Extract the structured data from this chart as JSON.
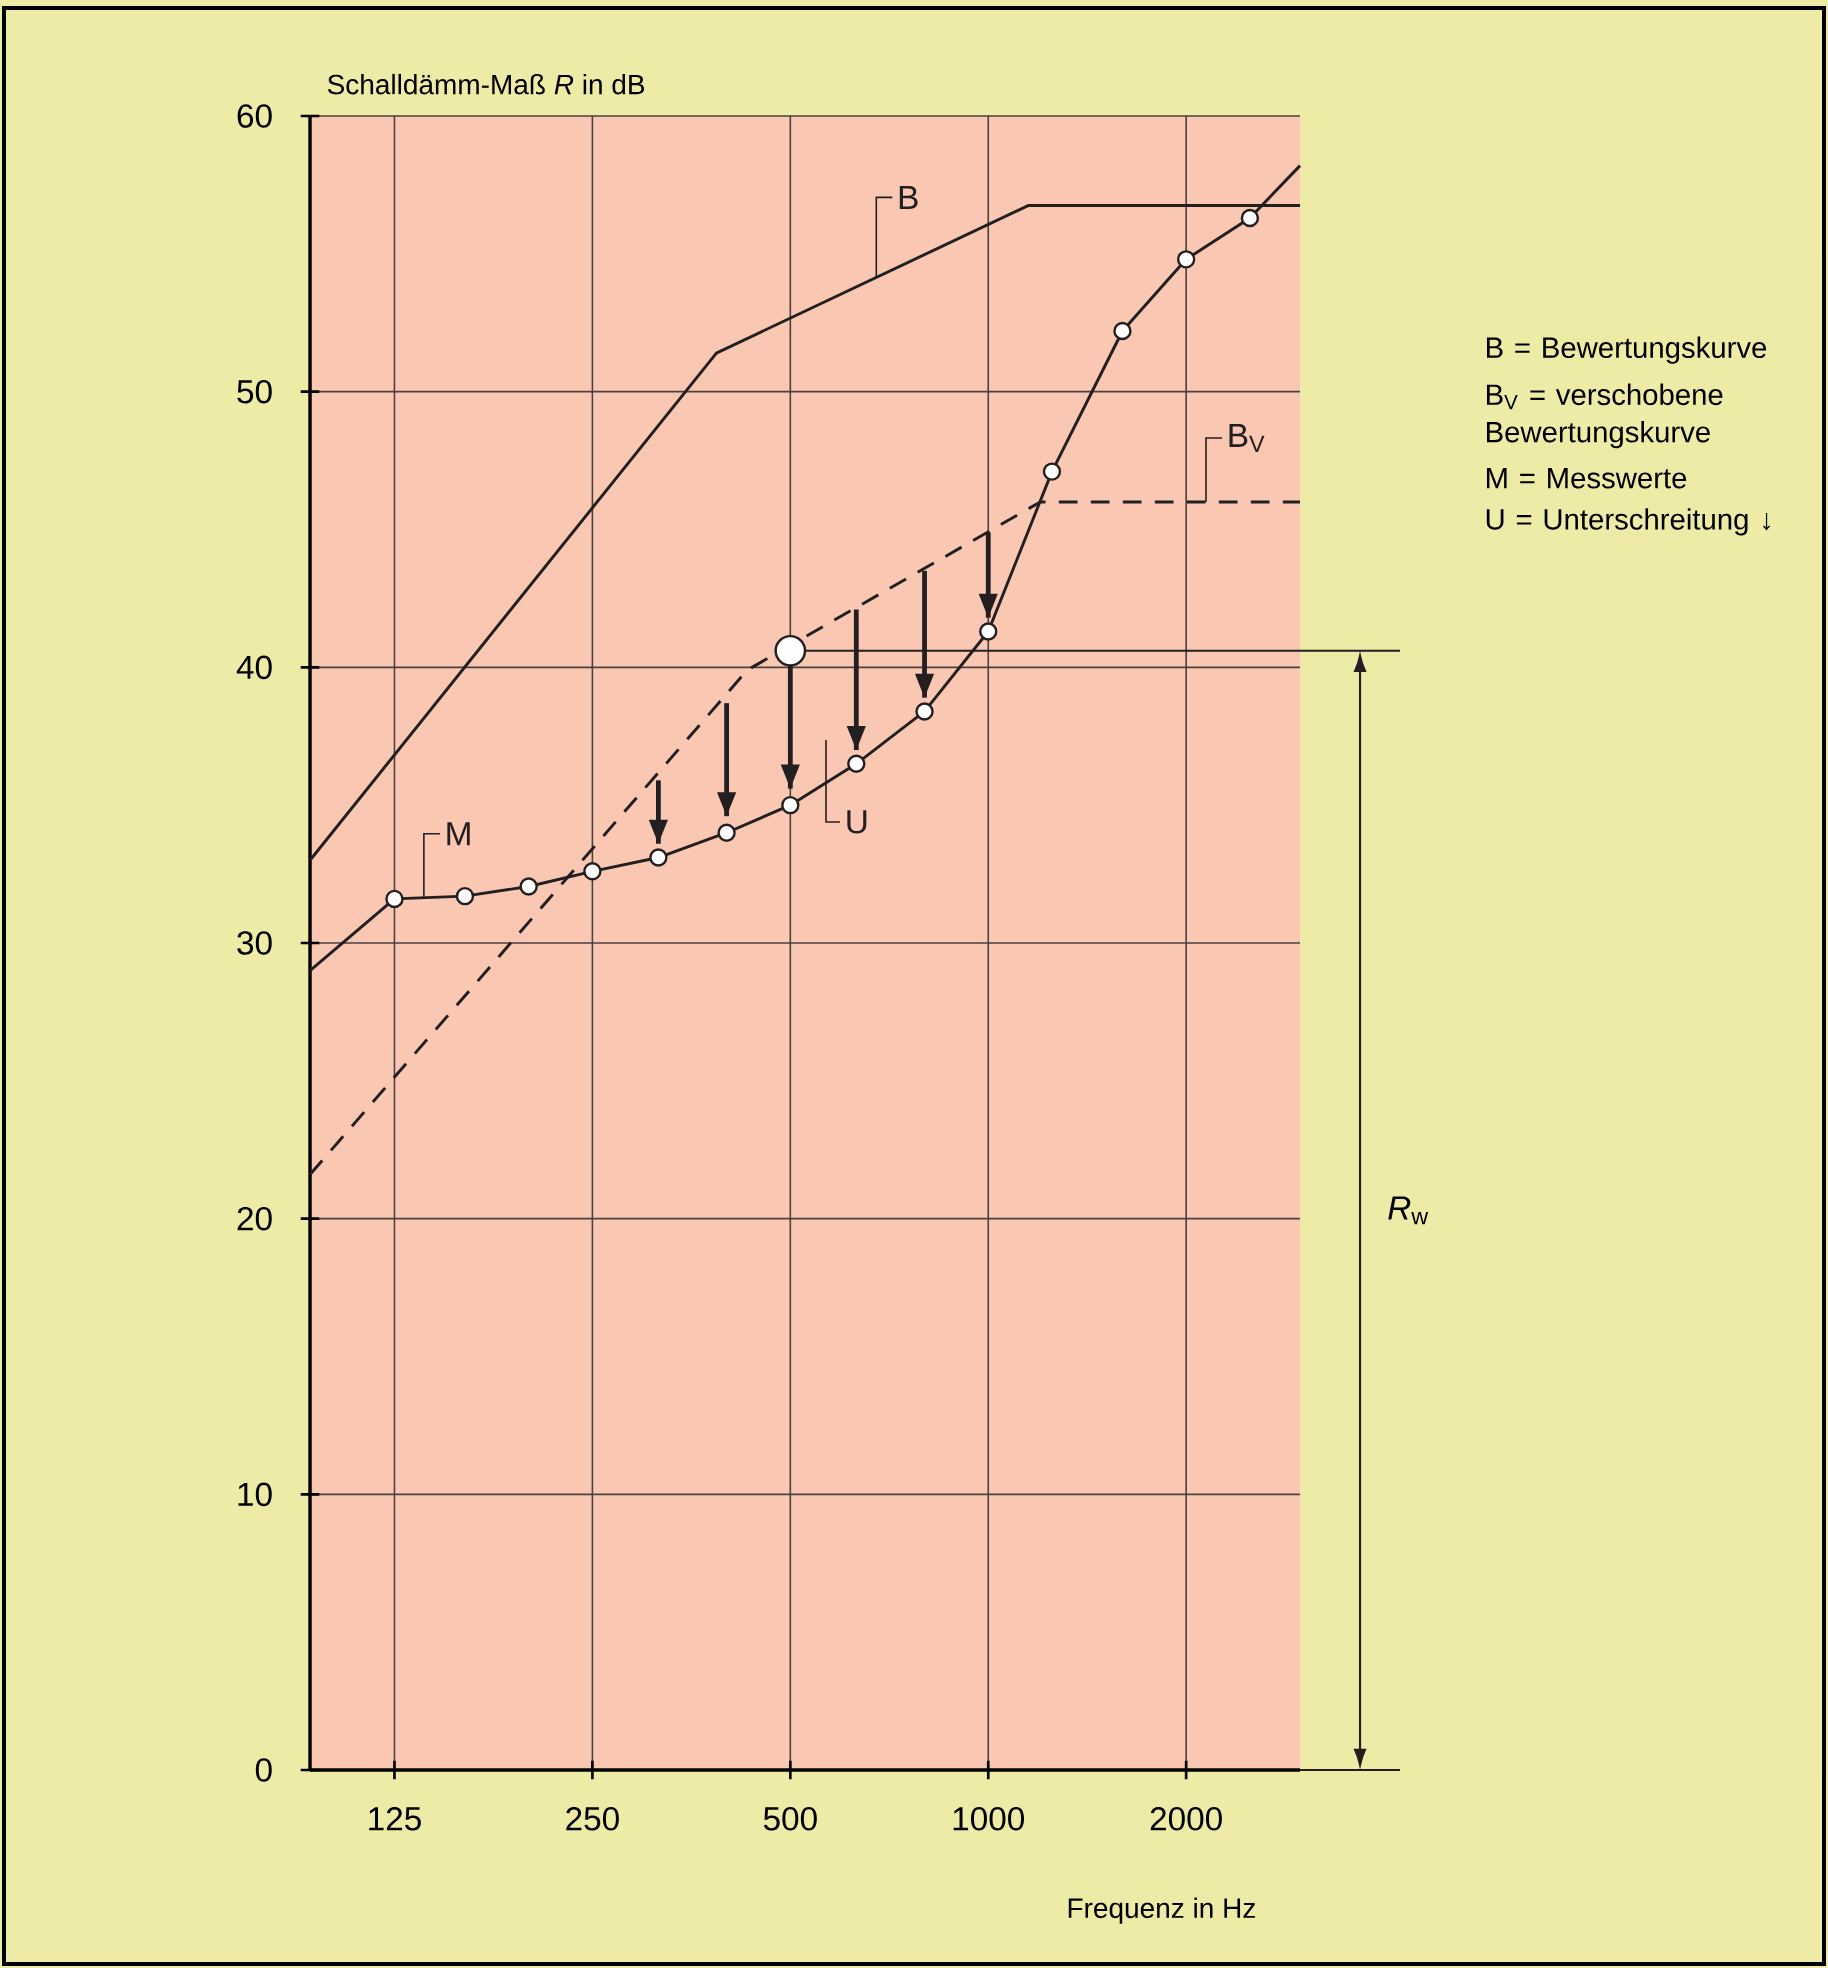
{
  "chart_data": {
    "type": "line",
    "ylabel": "Schalldämm-Maß *R* in dB",
    "xlabel": "Frequenz in Hz",
    "log": "x",
    "xlim": [
      93,
      2980
    ],
    "xticks": [
      125,
      250,
      500,
      1000,
      2000
    ],
    "ylim": [
      0,
      60
    ],
    "yticks": [
      0,
      10,
      20,
      30,
      40,
      50,
      60
    ],
    "grid": true,
    "series": [
      {
        "name": "B",
        "color": "#231f20",
        "line_style": "solid",
        "marker": "none",
        "x": [
          93,
          386,
          1150,
          2980
        ],
        "values": [
          33.0,
          51.4,
          56.75,
          56.75
        ]
      },
      {
        "name": "B$_{V}$",
        "color": "#231f20",
        "line_style": "dashed",
        "marker": "none",
        "x": [
          93,
          430,
          1200,
          2980
        ],
        "values": [
          21.6,
          39.9,
          46.0,
          46.0
        ]
      },
      {
        "name": "M",
        "color": "#231f20",
        "line_style": "solid",
        "marker": "circle",
        "x": [
          125,
          160,
          200,
          250,
          315,
          400,
          500,
          630,
          800,
          1000,
          1250,
          1600,
          2000,
          2500
        ],
        "values": [
          31.6,
          31.7,
          32.05,
          32.6,
          33.1,
          34.0,
          35.0,
          36.5,
          38.4,
          41.3,
          47.1,
          52.2,
          54.8,
          56.3
        ],
        "errors": [
          null,
          null,
          null,
          null,
          [
            33.6,
            35.9
          ],
          [
            34.6,
            38.7
          ],
          [
            35.6,
            40.2
          ],
          [
            37.0,
            42.1
          ],
          [
            38.9,
            43.5
          ],
          [
            41.8,
            44.9
          ],
          null,
          null,
          null,
          null
        ]
      },
      {
        "color": "#231f20",
        "line_style": "solid",
        "marker": "none",
        "x": [
          93,
          125
        ],
        "values": [
          29.0,
          31.6
        ]
      },
      {
        "color": "#231f20",
        "line_style": "solid",
        "marker": "none",
        "x": [
          2500,
          2980
        ],
        "values": [
          56.3,
          58.2
        ]
      },
      {
        "type": "scatter",
        "color": "#231f20",
        "marker": "circle",
        "x": [
          500
        ],
        "values": [
          40.6
        ]
      }
    ],
    "ref_lines": [
      {
        "axis": "y",
        "value": 40.6
      }
    ],
    "annotations": [
      "U",
      "*R*$_{w}$",
      "B = Bewertungskurve",
      "B$_{V}$ = verschobene Bewertungskurve",
      "M = Messwerte",
      "U = Unterschreitung ↓"
    ]
  }
}
